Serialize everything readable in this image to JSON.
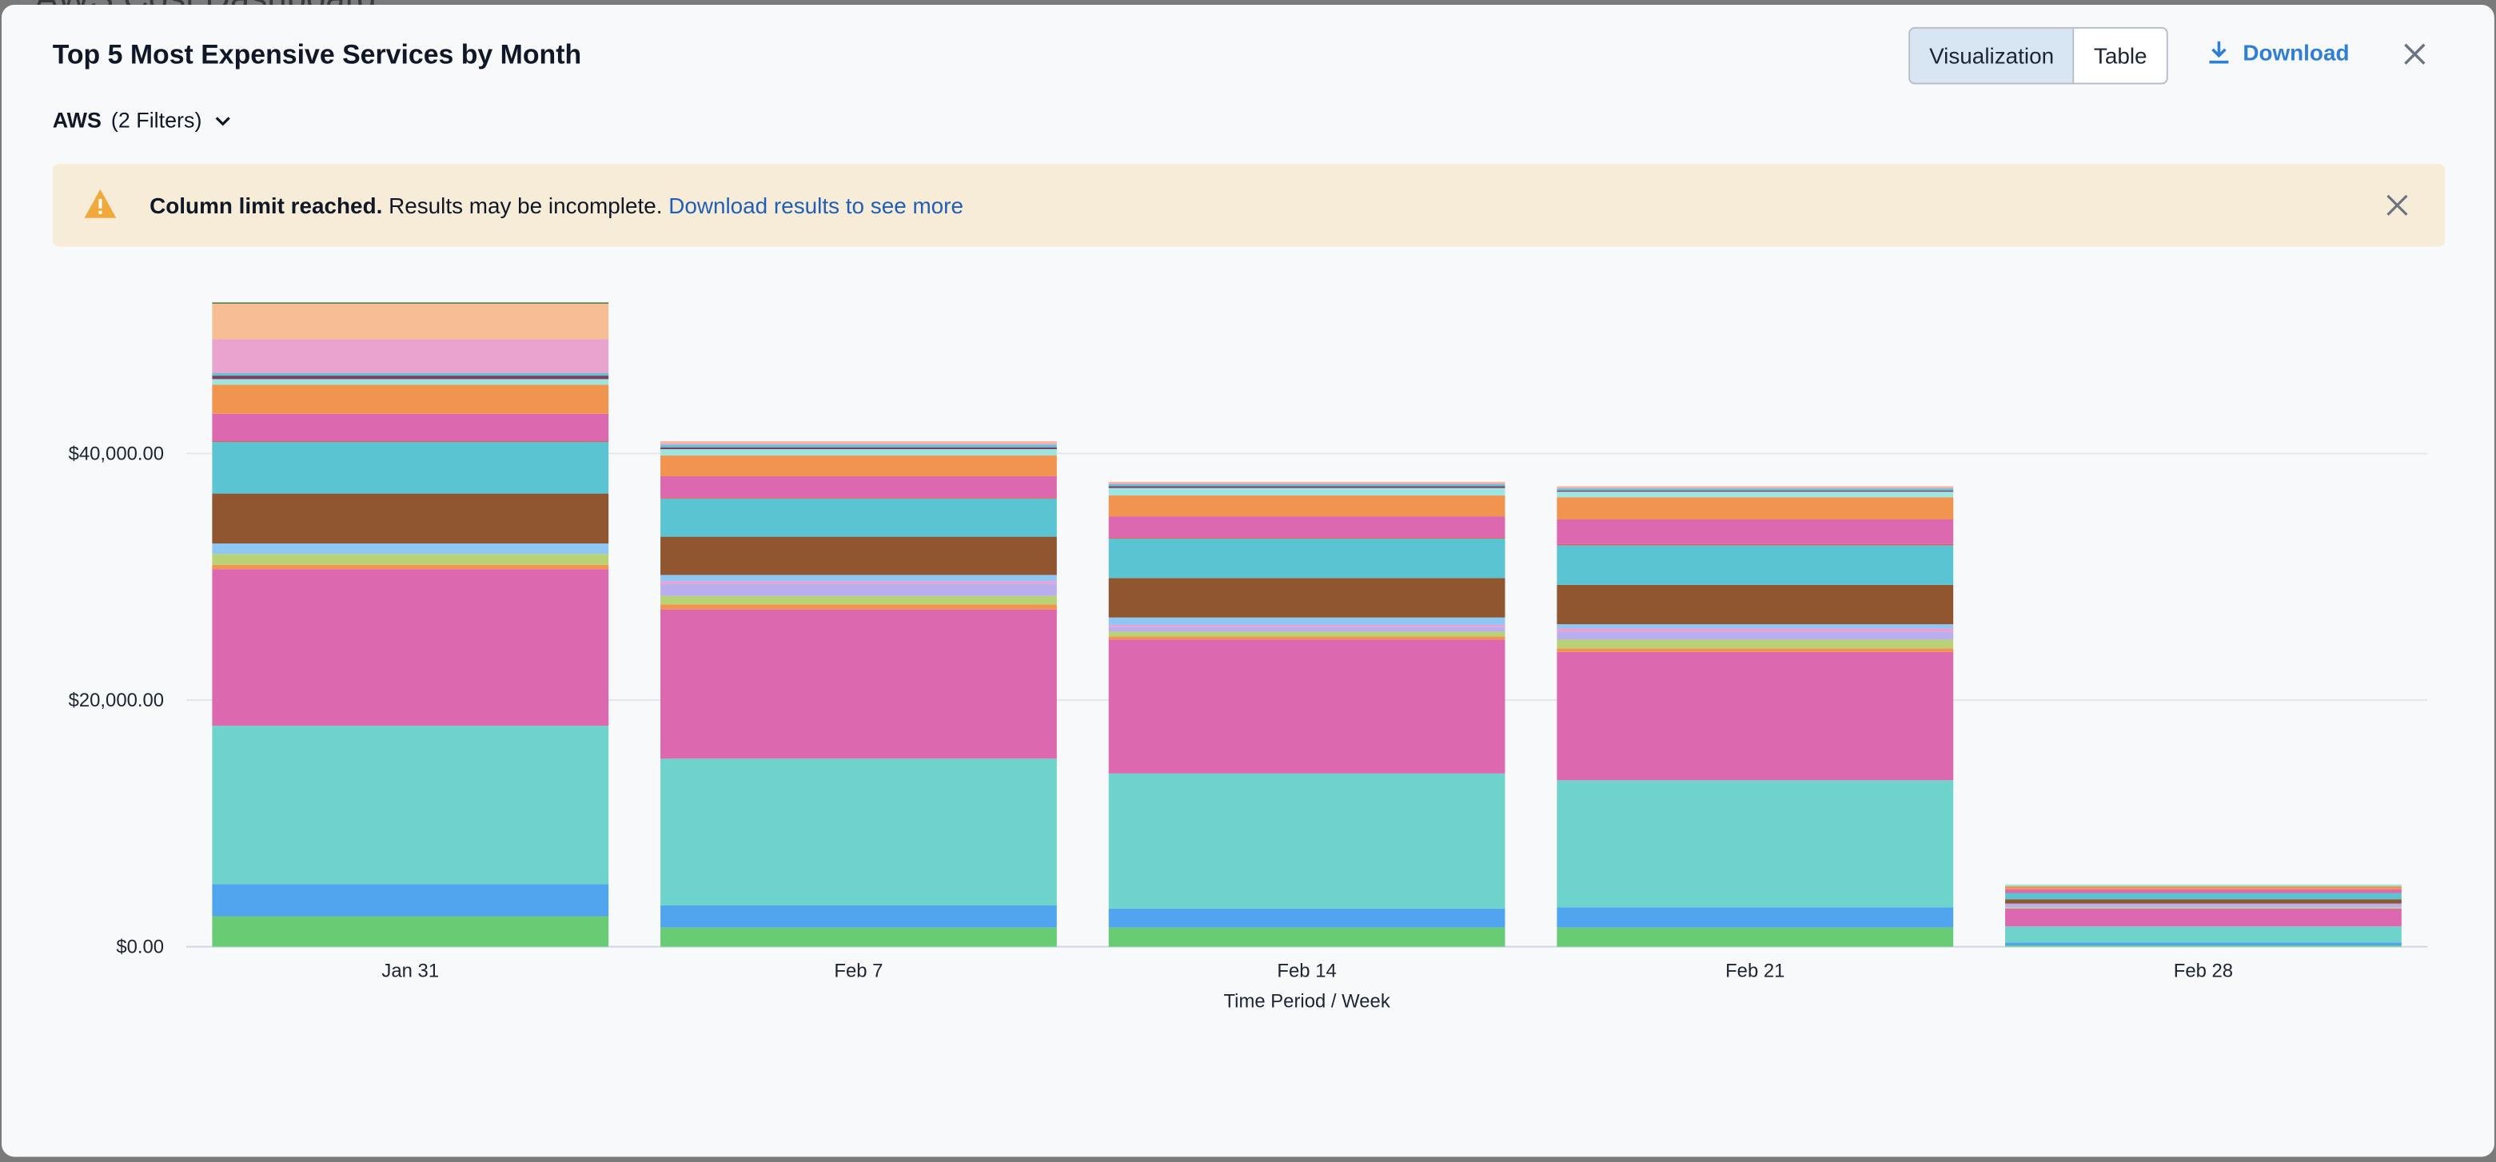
{
  "backdrop": {
    "title": "AWS Cost Dashboard"
  },
  "header": {
    "title": "Top 5 Most Expensive Services by Month",
    "filter_label": "AWS",
    "filter_count": "(2 Filters)",
    "view_toggle": [
      {
        "label": "Visualization",
        "selected": true
      },
      {
        "label": "Table",
        "selected": false
      }
    ],
    "download_label": "Download"
  },
  "icons": {
    "download": "download-icon",
    "close": "close-icon",
    "warning": "warning-triangle-icon",
    "chevron": "chevron-down-icon"
  },
  "banner": {
    "bold": "Column limit reached.",
    "text": " Results may be incomplete. ",
    "link": "Download results to see more",
    "color": "#f7ecd7"
  },
  "chart_data": {
    "type": "bar",
    "stacked": true,
    "categories": [
      "Jan 31",
      "Feb 7",
      "Feb 14",
      "Feb 21",
      "Feb 28"
    ],
    "xlabel": "Time Period / Week",
    "ylabel": "",
    "ylim": [
      0,
      53000
    ],
    "yticks": [
      0,
      20000,
      40000
    ],
    "ytick_labels": [
      "$0.00",
      "$20,000.00",
      "$40,000.00"
    ],
    "grid": true,
    "legend": "none",
    "series": [
      {
        "color": "#68cc74",
        "values": [
          2470,
          1550,
          1550,
          1550,
          100
        ]
      },
      {
        "color": "#50a5ee",
        "values": [
          2600,
          1800,
          1550,
          1650,
          250
        ]
      },
      {
        "color": "#6dd3cb",
        "values": [
          12850,
          11900,
          10950,
          10300,
          1300
        ]
      },
      {
        "color": "#dc69af",
        "values": [
          12700,
          12100,
          10850,
          10400,
          1450
        ]
      },
      {
        "color": "#f0944f",
        "values": [
          350,
          400,
          250,
          300,
          0
        ]
      },
      {
        "color": "#b9d275",
        "values": [
          880,
          700,
          400,
          700,
          100
        ]
      },
      {
        "color": "#b9aeee",
        "values": [
          0,
          1000,
          400,
          650,
          300
        ]
      },
      {
        "color": "#f09fce",
        "values": [
          0,
          200,
          150,
          250,
          0
        ]
      },
      {
        "color": "#8ec7f4",
        "values": [
          850,
          500,
          600,
          350,
          0
        ]
      },
      {
        "color": "#8f5630",
        "values": [
          4050,
          3100,
          3200,
          3200,
          350
        ]
      },
      {
        "color": "#5bc4d3",
        "values": [
          4190,
          3100,
          3200,
          3200,
          500
        ]
      },
      {
        "color": "#e0585e",
        "values": [
          100,
          100,
          100,
          100,
          0
        ]
      },
      {
        "color": "#dc69af",
        "values": [
          2180,
          1700,
          1700,
          2000,
          300
        ]
      },
      {
        "color": "#f0944f",
        "values": [
          2360,
          1700,
          1700,
          1800,
          250
        ]
      },
      {
        "color": "#9ee5e0",
        "values": [
          450,
          500,
          600,
          450,
          150
        ]
      },
      {
        "color": "#7f3f62",
        "values": [
          280,
          150,
          150,
          100,
          0
        ]
      },
      {
        "color": "#5bc4d3",
        "values": [
          200,
          200,
          150,
          150,
          0
        ]
      },
      {
        "color": "#e8a3cf",
        "values": [
          2750,
          150,
          100,
          100,
          0
        ]
      },
      {
        "color": "#f7be95",
        "values": [
          2890,
          150,
          100,
          100,
          0
        ]
      },
      {
        "color": "#4e7a45",
        "values": [
          100,
          0,
          0,
          0,
          0
        ]
      }
    ]
  }
}
